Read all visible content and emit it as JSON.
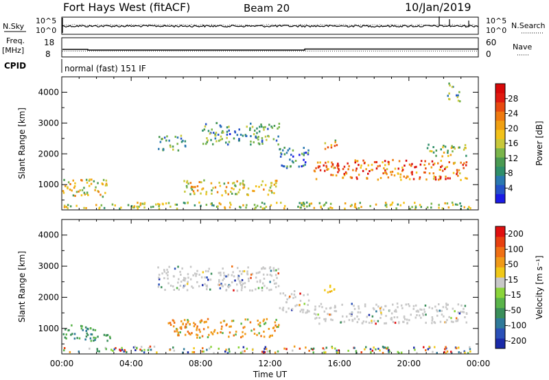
{
  "header": {
    "station": "Fort Hays West (fitACF)",
    "beam": "Beam 20",
    "date": "10/Jan/2019"
  },
  "side_labels": {
    "nsky": "N.Sky",
    "nsearch": "N.Search",
    "freq": "Freq.",
    "freq_unit": "[MHz]",
    "nave": "Nave",
    "cpid": "CPID"
  },
  "cpid_text": "normal (fast) 151 IF",
  "strip_ticks": {
    "noise_left": [
      "10^5",
      "10^0"
    ],
    "noise_right": [
      "10^5",
      "10^0"
    ],
    "freq_left": [
      "18",
      "8"
    ],
    "freq_right": [
      "60",
      "0"
    ]
  },
  "chart_data": [
    {
      "type": "heatmap",
      "panel": "power",
      "xlabel": "",
      "ylabel": "Slant Range [km]",
      "x_range_hours": [
        0,
        24
      ],
      "ylim": [
        180,
        4500
      ],
      "yticks": [
        1000,
        2000,
        3000,
        4000
      ],
      "colorbar": {
        "label": "Power [dB]",
        "ticks": [
          "4",
          "8",
          "12",
          "16",
          "20",
          "24",
          "28"
        ],
        "colors": [
          "#1a1ae6",
          "#2452c8",
          "#2a78b0",
          "#2f8f6a",
          "#4a9a52",
          "#7ab54a",
          "#c8c83a",
          "#f2c21a",
          "#f0a012",
          "#ef7a10",
          "#e84a10",
          "#e01a10",
          "#d80808"
        ]
      },
      "scatter_regions": [
        {
          "t0": 0.0,
          "t1": 2.6,
          "r0": 600,
          "r1": 1200,
          "level": 0.55
        },
        {
          "t0": 0.0,
          "t1": 4.5,
          "r0": 220,
          "r1": 380,
          "level": 0.5
        },
        {
          "t0": 5.5,
          "t1": 7.2,
          "r0": 2100,
          "r1": 2600,
          "level": 0.3
        },
        {
          "t0": 7.0,
          "t1": 12.5,
          "r0": 650,
          "r1": 1150,
          "level": 0.55
        },
        {
          "t0": 8.0,
          "t1": 12.5,
          "r0": 2300,
          "r1": 3000,
          "level": 0.3
        },
        {
          "t0": 12.5,
          "t1": 14.2,
          "r0": 1500,
          "r1": 2200,
          "level": 0.25
        },
        {
          "t0": 14.5,
          "t1": 23.3,
          "r0": 1150,
          "r1": 1800,
          "level": 0.75
        },
        {
          "t0": 15.0,
          "t1": 15.9,
          "r0": 2150,
          "r1": 2450,
          "level": 0.6
        },
        {
          "t0": 21.0,
          "t1": 23.3,
          "r0": 1900,
          "r1": 2300,
          "level": 0.45
        },
        {
          "t0": 22.2,
          "t1": 22.9,
          "r0": 3700,
          "r1": 4300,
          "level": 0.3
        },
        {
          "t0": 4.0,
          "t1": 23.5,
          "r0": 200,
          "r1": 420,
          "level": 0.45
        }
      ]
    },
    {
      "type": "heatmap",
      "panel": "velocity",
      "xlabel": "Time UT",
      "ylabel": "Slant Range [km]",
      "x_range_hours": [
        0,
        24
      ],
      "xticks": [
        "00:00",
        "04:00",
        "08:00",
        "12:00",
        "16:00",
        "20:00",
        "00:00"
      ],
      "ylim": [
        180,
        4500
      ],
      "yticks": [
        1000,
        2000,
        3000,
        4000
      ],
      "colorbar": {
        "label": "Velocity [m s⁻¹]",
        "ticks": [
          "200",
          "100",
          "50",
          "15",
          "-15",
          "-50",
          "-100",
          "-200"
        ],
        "colors": [
          "#1a2aa8",
          "#2a50b8",
          "#2f7a9a",
          "#3a8e5a",
          "#5ab44a",
          "#8ad43a",
          "#c8c8c8",
          "#f0c818",
          "#f09a18",
          "#f07014",
          "#e84010",
          "#e01010"
        ]
      },
      "scatter_regions": [
        {
          "t0": 0.0,
          "t1": 2.8,
          "r0": 600,
          "r1": 1100,
          "level": "toward"
        },
        {
          "t0": 0.0,
          "t1": 4.5,
          "r0": 220,
          "r1": 380,
          "level": "mixed"
        },
        {
          "t0": 6.0,
          "t1": 12.5,
          "r0": 700,
          "r1": 1300,
          "level": "away"
        },
        {
          "t0": 5.5,
          "t1": 12.5,
          "r0": 2200,
          "r1": 3000,
          "level": "gray"
        },
        {
          "t0": 12.5,
          "t1": 14.2,
          "r0": 1500,
          "r1": 2200,
          "level": "gray"
        },
        {
          "t0": 14.5,
          "t1": 23.3,
          "r0": 1150,
          "r1": 1800,
          "level": "gray"
        },
        {
          "t0": 15.0,
          "t1": 15.9,
          "r0": 2150,
          "r1": 2400,
          "level": "yellow"
        },
        {
          "t0": 4.0,
          "t1": 23.5,
          "r0": 200,
          "r1": 420,
          "level": "mixed"
        }
      ]
    }
  ]
}
